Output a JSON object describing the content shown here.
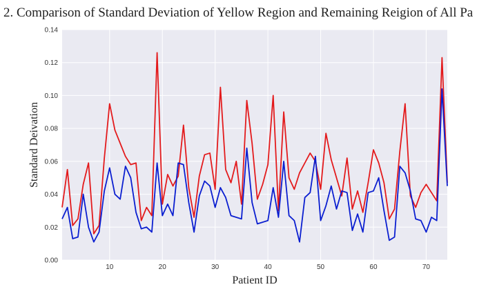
{
  "chart_data": {
    "type": "line",
    "title": "2. Comparison of Standard Deviation of Yellow Region and Remaining Reigion of All Pa",
    "xlabel": "Patient ID",
    "ylabel": "Standard Deivation",
    "xlim": [
      1,
      74
    ],
    "ylim": [
      0,
      0.14
    ],
    "x_ticks": [
      10,
      20,
      30,
      40,
      50,
      60,
      70
    ],
    "x_tick_labels": [
      "10",
      "20",
      "30",
      "40",
      "50",
      "60",
      "70"
    ],
    "y_ticks": [
      0,
      0.02,
      0.04,
      0.06,
      0.08,
      0.1,
      0.12,
      0.14
    ],
    "y_tick_labels": [
      "0.00",
      "0.02",
      "0.04",
      "0.06",
      "0.08",
      "0.10",
      "0.12",
      "0.14"
    ],
    "grid": true,
    "background": "#eaeaf2",
    "x": [
      1,
      2,
      3,
      4,
      5,
      6,
      7,
      8,
      9,
      10,
      11,
      12,
      13,
      14,
      15,
      16,
      17,
      18,
      19,
      20,
      21,
      22,
      23,
      24,
      25,
      26,
      27,
      28,
      29,
      30,
      31,
      32,
      33,
      34,
      35,
      36,
      37,
      38,
      39,
      40,
      41,
      42,
      43,
      44,
      45,
      46,
      47,
      48,
      49,
      50,
      51,
      52,
      53,
      54,
      55,
      56,
      57,
      58,
      59,
      60,
      61,
      62,
      63,
      64,
      65,
      66,
      67,
      68,
      69,
      70,
      71,
      72,
      73,
      74
    ],
    "series": [
      {
        "color": "#e31a1c",
        "values": [
          0.032,
          0.055,
          0.021,
          0.025,
          0.046,
          0.059,
          0.016,
          0.021,
          0.062,
          0.095,
          0.079,
          0.071,
          0.063,
          0.058,
          0.059,
          0.024,
          0.032,
          0.027,
          0.126,
          0.034,
          0.052,
          0.045,
          0.051,
          0.082,
          0.044,
          0.026,
          0.051,
          0.064,
          0.065,
          0.043,
          0.105,
          0.055,
          0.047,
          0.06,
          0.034,
          0.097,
          0.071,
          0.037,
          0.046,
          0.058,
          0.1,
          0.03,
          0.09,
          0.05,
          0.043,
          0.053,
          0.059,
          0.065,
          0.06,
          0.043,
          0.077,
          0.061,
          0.05,
          0.039,
          0.062,
          0.031,
          0.042,
          0.029,
          0.047,
          0.067,
          0.059,
          0.047,
          0.025,
          0.031,
          0.066,
          0.095,
          0.039,
          0.032,
          0.041,
          0.046,
          0.041,
          0.036,
          0.123,
          0.047
        ]
      },
      {
        "color": "#0a1ed0",
        "values": [
          0.025,
          0.032,
          0.013,
          0.014,
          0.04,
          0.02,
          0.011,
          0.017,
          0.042,
          0.056,
          0.04,
          0.037,
          0.057,
          0.05,
          0.029,
          0.019,
          0.02,
          0.017,
          0.059,
          0.027,
          0.034,
          0.027,
          0.059,
          0.058,
          0.035,
          0.017,
          0.039,
          0.048,
          0.045,
          0.032,
          0.044,
          0.038,
          0.027,
          0.026,
          0.025,
          0.068,
          0.035,
          0.022,
          0.023,
          0.024,
          0.044,
          0.026,
          0.06,
          0.027,
          0.024,
          0.011,
          0.038,
          0.041,
          0.063,
          0.024,
          0.033,
          0.045,
          0.031,
          0.042,
          0.041,
          0.018,
          0.028,
          0.017,
          0.041,
          0.042,
          0.05,
          0.03,
          0.012,
          0.014,
          0.057,
          0.053,
          0.042,
          0.025,
          0.024,
          0.017,
          0.026,
          0.024,
          0.104,
          0.045
        ]
      }
    ]
  }
}
